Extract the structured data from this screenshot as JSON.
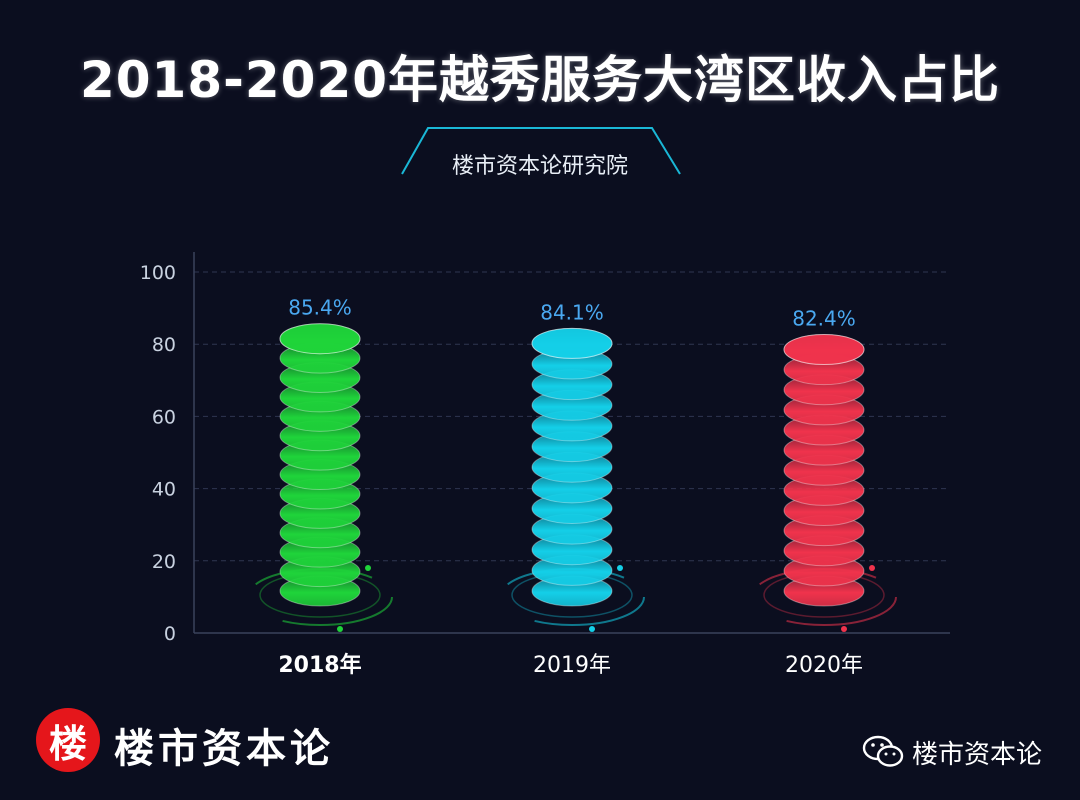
{
  "header": {
    "title": "2018-2020年越秀服务大湾区收入占比",
    "source": "楼市资本论研究院"
  },
  "chart_data": {
    "type": "bar",
    "categories": [
      "2018年",
      "2019年",
      "2020年"
    ],
    "values": [
      85.4,
      84.1,
      82.4
    ],
    "value_labels": [
      "85.4%",
      "84.1%",
      "82.4%"
    ],
    "ylim": [
      0,
      100
    ],
    "yticks": [
      "0",
      "20",
      "40",
      "60",
      "80",
      "100"
    ],
    "grid": true,
    "colors": [
      "#1fd43a",
      "#14cfe8",
      "#f0334c"
    ]
  },
  "footer": {
    "logo_char": "楼",
    "brand": "楼市资本论",
    "wechat_label": "楼市资本论"
  }
}
